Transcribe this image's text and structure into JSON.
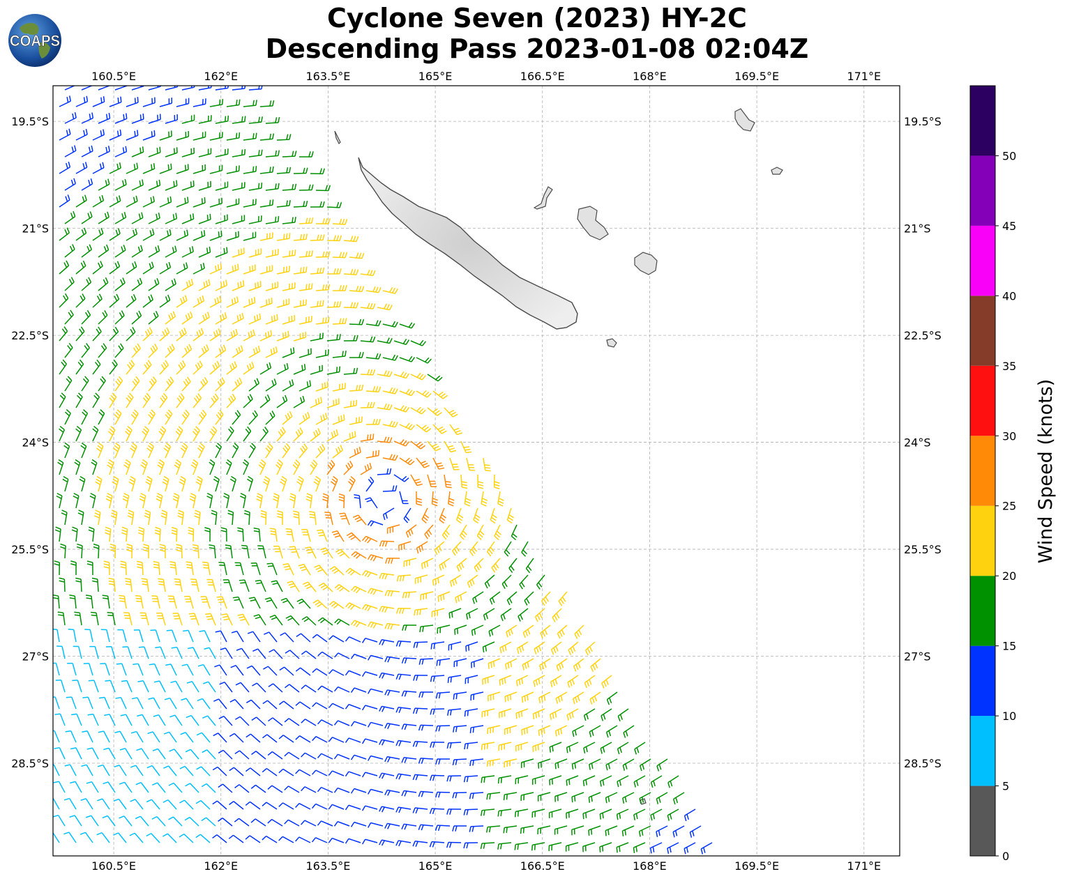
{
  "header": {
    "title_line1": "Cyclone Seven (2023) HY-2C",
    "title_line2": "Descending Pass 2023-01-08 02:04Z",
    "logo_text": "COAPS"
  },
  "map": {
    "lon_ticks": [
      "160.5°E",
      "162°E",
      "163.5°E",
      "165°E",
      "166.5°E",
      "168°E",
      "169.5°E",
      "171°E"
    ],
    "lat_ticks": [
      "19.5°S",
      "21°S",
      "22.5°S",
      "24°S",
      "25.5°S",
      "27°S",
      "28.5°S"
    ],
    "lon_range": [
      159.65,
      171.5
    ],
    "lat_range": [
      -19.0,
      -29.8
    ],
    "gridlines": true,
    "land_color": "#e2e2e2",
    "coast_color": "#555555",
    "cyclone_center": {
      "lon": 164.3,
      "lat": -24.8
    }
  },
  "colorbar": {
    "title": "Wind Speed (knots)",
    "tick_labels": [
      "0",
      "5",
      "10",
      "15",
      "20",
      "25",
      "30",
      "35",
      "40",
      "45",
      "50"
    ],
    "bins": [
      {
        "min": 0,
        "max": 5,
        "color": "#585858"
      },
      {
        "min": 5,
        "max": 10,
        "color": "#00bfff"
      },
      {
        "min": 10,
        "max": 15,
        "color": "#0033ff"
      },
      {
        "min": 15,
        "max": 20,
        "color": "#009100"
      },
      {
        "min": 20,
        "max": 25,
        "color": "#ffd210"
      },
      {
        "min": 25,
        "max": 30,
        "color": "#ff8a08"
      },
      {
        "min": 30,
        "max": 35,
        "color": "#ff1010"
      },
      {
        "min": 35,
        "max": 40,
        "color": "#853d2a"
      },
      {
        "min": 40,
        "max": 45,
        "color": "#f900f9"
      },
      {
        "min": 45,
        "max": 50,
        "color": "#8400b8"
      },
      {
        "min": 50,
        "max": 55,
        "color": "#2c0060"
      }
    ]
  }
}
